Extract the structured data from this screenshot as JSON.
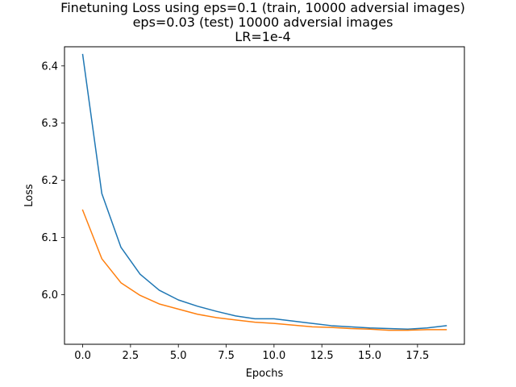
{
  "chart_data": {
    "type": "line",
    "title_lines": [
      "Finetuning Loss using eps=0.1 (train, 10000 adversial images)",
      "eps=0.03 (test) 10000 adversial images",
      "LR=1e-4"
    ],
    "xlabel": "Epochs",
    "ylabel": "Loss",
    "xlim": [
      -0.95,
      19.95
    ],
    "ylim": [
      5.9135,
      6.4335
    ],
    "x_ticks": [
      0.0,
      2.5,
      5.0,
      7.5,
      10.0,
      12.5,
      15.0,
      17.5
    ],
    "x_tick_labels": [
      "0.0",
      "2.5",
      "5.0",
      "7.5",
      "10.0",
      "12.5",
      "15.0",
      "17.5"
    ],
    "y_ticks": [
      6.0,
      6.1,
      6.2,
      6.3,
      6.4
    ],
    "y_tick_labels": [
      "6.0",
      "6.1",
      "6.2",
      "6.3",
      "6.4"
    ],
    "grid": false,
    "x": [
      0,
      1,
      2,
      3,
      4,
      5,
      6,
      7,
      8,
      9,
      10,
      11,
      12,
      13,
      14,
      15,
      16,
      17,
      18,
      19
    ],
    "series": [
      {
        "color": "#1f77b4",
        "values": [
          6.42,
          6.177,
          6.083,
          6.036,
          6.008,
          5.991,
          5.98,
          5.971,
          5.963,
          5.958,
          5.958,
          5.954,
          5.95,
          5.946,
          5.944,
          5.942,
          5.941,
          5.94,
          5.942,
          5.946
        ]
      },
      {
        "color": "#ff7f0e",
        "values": [
          6.148,
          6.063,
          6.021,
          5.999,
          5.984,
          5.975,
          5.966,
          5.96,
          5.956,
          5.952,
          5.95,
          5.947,
          5.944,
          5.943,
          5.941,
          5.94,
          5.938,
          5.938,
          5.939,
          5.939
        ]
      }
    ]
  }
}
